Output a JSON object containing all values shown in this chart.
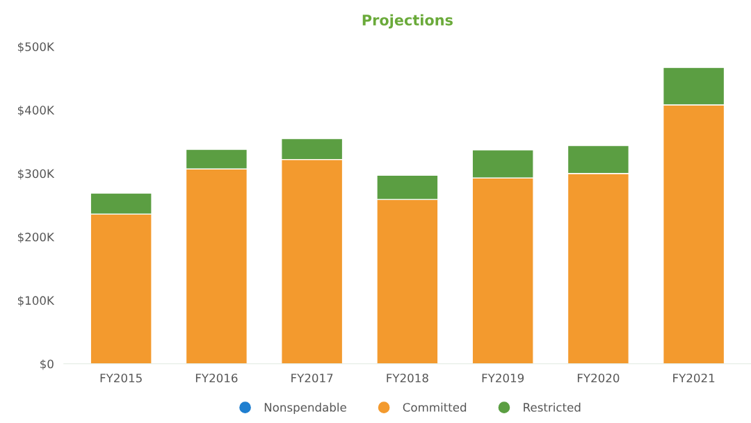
{
  "chart_data": {
    "type": "bar",
    "title": "Projections",
    "stacked": true,
    "categories": [
      "FY2015",
      "FY2016",
      "FY2017",
      "FY2018",
      "FY2019",
      "FY2020",
      "FY2021"
    ],
    "series": [
      {
        "name": "Nonspendable",
        "color": "#1f7fd0",
        "values": [
          0,
          0,
          0,
          0,
          0,
          0,
          0
        ]
      },
      {
        "name": "Committed",
        "color": "#f39a2e",
        "values": [
          236000,
          307000,
          322000,
          259000,
          293000,
          300000,
          408000
        ]
      },
      {
        "name": "Restricted",
        "color": "#5b9e42",
        "values": [
          33000,
          31000,
          33000,
          38000,
          44000,
          44000,
          59000
        ]
      }
    ],
    "ylim": [
      0,
      500000
    ],
    "yticks": [
      {
        "value": 0,
        "label": "$0"
      },
      {
        "value": 100000,
        "label": "$100K"
      },
      {
        "value": 200000,
        "label": "$200K"
      },
      {
        "value": 300000,
        "label": "$300K"
      },
      {
        "value": 400000,
        "label": "$400K"
      },
      {
        "value": 500000,
        "label": "$500K"
      }
    ],
    "grid": false,
    "legend": "bottom"
  }
}
